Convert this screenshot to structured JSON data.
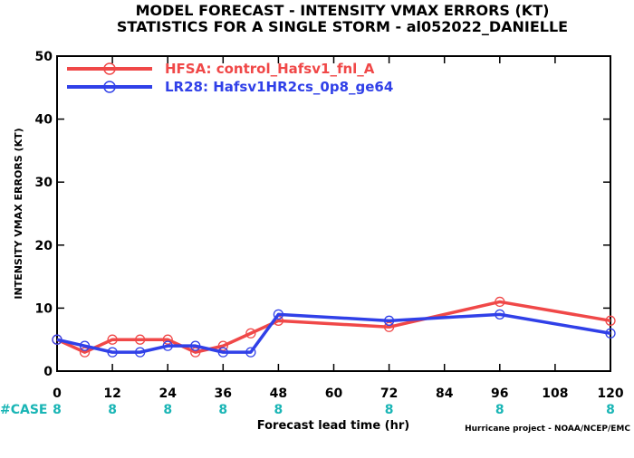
{
  "title_line1": "MODEL FORECAST - INTENSITY VMAX ERRORS (KT)",
  "title_line2": "STATISTICS FOR A SINGLE STORM - al052022_DANIELLE",
  "credit": "Hurricane project - NOAA/NCEP/EMC",
  "case_label": "#CASE",
  "chart_data": {
    "type": "line",
    "xlabel": "Forecast lead time (hr)",
    "ylabel": "INTENSITY VMAX ERRORS (KT)",
    "xlim": [
      0,
      120
    ],
    "ylim": [
      0,
      50
    ],
    "x_ticks": [
      0,
      12,
      24,
      36,
      48,
      60,
      72,
      84,
      96,
      108,
      120
    ],
    "y_ticks": [
      0,
      10,
      20,
      30,
      40,
      50
    ],
    "grid": false,
    "legend_position": "top-left",
    "case_counts": [
      {
        "x": 0,
        "n": "8"
      },
      {
        "x": 12,
        "n": "8"
      },
      {
        "x": 24,
        "n": "8"
      },
      {
        "x": 36,
        "n": "8"
      },
      {
        "x": 48,
        "n": "8"
      },
      {
        "x": 72,
        "n": "8"
      },
      {
        "x": 96,
        "n": "8"
      },
      {
        "x": 120,
        "n": "8"
      }
    ],
    "series": [
      {
        "name": "HFSA: control_Hafsv1_fnl_A",
        "color": "#f04848",
        "points": [
          [
            0,
            5
          ],
          [
            6,
            3
          ],
          [
            12,
            5
          ],
          [
            18,
            5
          ],
          [
            24,
            5
          ],
          [
            30,
            3
          ],
          [
            36,
            4
          ],
          [
            42,
            6
          ],
          [
            48,
            8
          ],
          [
            72,
            7
          ],
          [
            96,
            11
          ],
          [
            120,
            8
          ]
        ]
      },
      {
        "name": "LR28: Hafsv1HR2cs_0p8_ge64",
        "color": "#3040e8",
        "points": [
          [
            0,
            5
          ],
          [
            6,
            4
          ],
          [
            12,
            3
          ],
          [
            18,
            3
          ],
          [
            24,
            4
          ],
          [
            30,
            4
          ],
          [
            36,
            3
          ],
          [
            42,
            3
          ],
          [
            48,
            9
          ],
          [
            72,
            8
          ],
          [
            96,
            9
          ],
          [
            120,
            6
          ]
        ]
      }
    ]
  }
}
